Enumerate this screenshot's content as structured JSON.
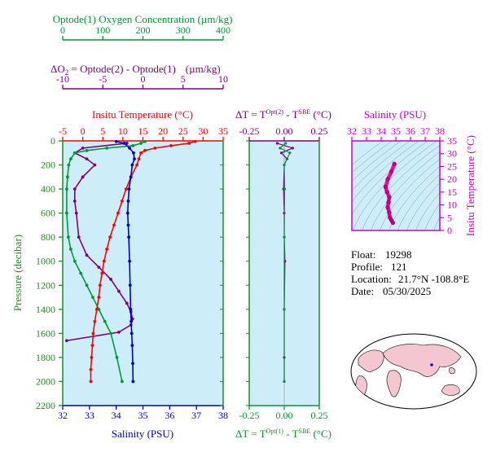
{
  "colors": {
    "oxygen": "#009933",
    "delta": "#800080",
    "temperature": "#ff0000",
    "salinity": "#0000cc",
    "pressure_axis": "#228b22",
    "ts_axis": "#cc00cc",
    "plot_bg": "#cdeef8",
    "map_water": "#ffffff",
    "map_land": "#f4c6cf"
  },
  "header": {
    "oxygen_axis_title": "Optode(1) Oxygen Concentration (µm/kg)",
    "oxygen_ticks": [
      "0",
      "100",
      "200",
      "300",
      "400"
    ],
    "delta_axis_title_prefix": "ΔO",
    "delta_axis_title_sub": "2",
    "delta_axis_title_rest": " = Optode(2) - Optode(1)",
    "delta_axis_unit": "(µm/kg)",
    "delta_ticks": [
      "-10",
      "-5",
      "0",
      "5",
      "10"
    ]
  },
  "main_panel": {
    "temp_axis_title": "Insitu Temperature (°C)",
    "temp_ticks": [
      "-5",
      "0",
      "5",
      "10",
      "15",
      "20",
      "25",
      "30",
      "35"
    ],
    "salinity_axis_title": "Salinity (PSU)",
    "salinity_ticks": [
      "32",
      "33",
      "34",
      "35",
      "36",
      "37",
      "38"
    ],
    "pressure_axis_title": "Pressure (decibar)",
    "pressure_ticks": [
      "0",
      "200",
      "400",
      "600",
      "800",
      "1000",
      "1200",
      "1400",
      "1600",
      "1800",
      "2000",
      "2200"
    ]
  },
  "delta_t_panel": {
    "top_title_prefix": "ΔT = T",
    "top_title_sup": "Opt(2)",
    "top_title_mid": " - T",
    "top_title_sup2": "SBE",
    "top_title_unit": " (°C)",
    "bottom_title_prefix": "ΔT = T",
    "bottom_title_sup": "Opt(1)",
    "bottom_title_mid": " - T",
    "bottom_title_sup2": "SBE",
    "bottom_title_unit": " (°C)",
    "ticks": [
      "-0.25",
      "0.00",
      "0.25"
    ]
  },
  "ts_panel": {
    "salinity_title": "Salinity (PSU)",
    "salinity_ticks": [
      "32",
      "33",
      "34",
      "35",
      "36",
      "37",
      "38"
    ],
    "temp_title": "Insitu Temperature (°C)",
    "temp_ticks": [
      "0",
      "5",
      "10",
      "15",
      "20",
      "25",
      "30",
      "35"
    ]
  },
  "info": {
    "float_label": "Float:",
    "float_value": "19298",
    "profile_label": "Profile:",
    "profile_value": "121",
    "location_label": "Location:",
    "location_value": "21.7°N  -108.8°E",
    "date_label": "Date:",
    "date_value": "05/30/2025"
  },
  "chart_data": [
    {
      "type": "line",
      "panel": "profile",
      "xlim_temperature": [
        -5,
        35
      ],
      "xlim_salinity": [
        32,
        38
      ],
      "xlim_oxygen": [
        0,
        400
      ],
      "xlim_delta_o2": [
        -10,
        10
      ],
      "ylim_pressure": [
        0,
        2200
      ],
      "y_inverted": true,
      "series": [
        {
          "name": "Insitu Temperature",
          "axis": "temperature",
          "x": [
            28.0,
            26.5,
            22.0,
            18.0,
            15.5,
            14.5,
            14.0,
            13.5,
            12.0,
            10.8,
            9.8,
            8.8,
            7.8,
            6.8,
            6.0,
            5.3,
            4.8,
            4.3,
            4.0,
            3.5,
            3.0,
            2.6,
            2.4,
            2.2,
            2.0,
            2.0
          ],
          "y": [
            5,
            20,
            40,
            60,
            80,
            100,
            150,
            200,
            300,
            400,
            500,
            600,
            700,
            800,
            900,
            1000,
            1100,
            1200,
            1300,
            1400,
            1500,
            1600,
            1700,
            1800,
            1900,
            2000
          ]
        },
        {
          "name": "Salinity",
          "axis": "salinity",
          "x": [
            34.0,
            34.3,
            34.5,
            34.65,
            34.68,
            34.6,
            34.55,
            34.48,
            34.45,
            34.43,
            34.45,
            34.47,
            34.5,
            34.52,
            34.54,
            34.56,
            34.58,
            34.6,
            34.62,
            34.63
          ],
          "y": [
            5,
            20,
            60,
            100,
            150,
            200,
            300,
            400,
            500,
            600,
            700,
            800,
            1000,
            1200,
            1400,
            1500,
            1600,
            1700,
            1850,
            2000
          ]
        },
        {
          "name": "Oxygen Optode(1)",
          "axis": "oxygen",
          "x": [
            205,
            195,
            175,
            110,
            60,
            30,
            20,
            15,
            12,
            10,
            10,
            14,
            20,
            30,
            45,
            60,
            75,
            90,
            105,
            120,
            135,
            148
          ],
          "y": [
            5,
            20,
            40,
            60,
            80,
            100,
            150,
            200,
            300,
            400,
            600,
            800,
            900,
            1000,
            1100,
            1200,
            1300,
            1400,
            1500,
            1600,
            1800,
            2000
          ]
        },
        {
          "name": "ΔO2",
          "axis": "delta_o2",
          "x": [
            -2,
            -7.5,
            -8.5,
            -7,
            -6,
            -7.5,
            -8.5,
            -8.5,
            -8.3,
            -8.0,
            -7.0,
            -5.5,
            -4.0,
            -3.0,
            -2.0,
            -1.5,
            -1.3,
            -1.5,
            -3.0,
            -9.5
          ],
          "y": [
            20,
            60,
            100,
            150,
            200,
            300,
            400,
            500,
            600,
            800,
            950,
            1050,
            1150,
            1250,
            1350,
            1420,
            1480,
            1530,
            1590,
            1660
          ]
        }
      ]
    },
    {
      "type": "line",
      "panel": "delta_t",
      "xlim": [
        -0.25,
        0.25
      ],
      "ylim_pressure": [
        0,
        2200
      ],
      "series": [
        {
          "name": "Opt(2) - SBE",
          "x": [
            -0.05,
            0.06,
            -0.02,
            0.02,
            0.0,
            -0.005,
            0.0,
            0.0,
            0.005,
            0.0,
            0.0,
            0.0
          ],
          "y": [
            20,
            60,
            100,
            150,
            200,
            400,
            600,
            800,
            1000,
            1400,
            1800,
            2000
          ]
        },
        {
          "name": "Opt(1) - SBE",
          "x": [
            0.01,
            -0.03,
            0.04,
            0.0,
            0.003,
            0.0,
            0.0,
            0.0
          ],
          "y": [
            20,
            60,
            100,
            200,
            400,
            800,
            1400,
            2000
          ]
        }
      ]
    },
    {
      "type": "scatter",
      "panel": "ts_diagram",
      "xlim": [
        32,
        38
      ],
      "ylim": [
        0,
        35
      ],
      "series": [
        {
          "name": "T-S",
          "x": [
            34.9,
            34.7,
            34.45,
            34.3,
            34.4,
            34.55,
            34.5,
            34.45,
            34.55,
            34.6,
            34.7,
            34.8
          ],
          "y": [
            26,
            23,
            20,
            17,
            15,
            13,
            11,
            9,
            7,
            5,
            4,
            3
          ]
        }
      ]
    }
  ]
}
